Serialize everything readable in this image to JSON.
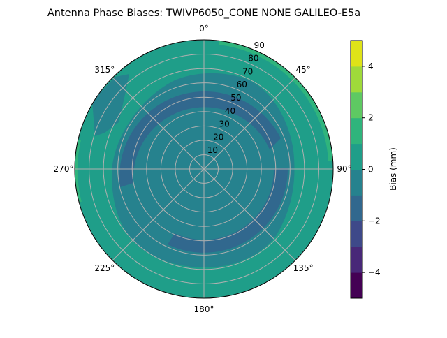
{
  "chart_data": {
    "type": "contour",
    "projection": "polar",
    "title": "Antenna Phase Biases: TWIVP6050_CONE  NONE GALILEO-E5a",
    "theta_direction": "clockwise",
    "theta_zero": "top",
    "theta_tick_labels": [
      "0°",
      "45°",
      "90°",
      "135°",
      "180°",
      "225°",
      "270°",
      "315°"
    ],
    "r_tick_labels": [
      "10",
      "20",
      "30",
      "40",
      "50",
      "60",
      "70",
      "80",
      "90"
    ],
    "rlim": [
      0,
      90
    ],
    "grid": true,
    "levels": [
      -5,
      -4,
      -3,
      -2,
      -1,
      0,
      1,
      2,
      3,
      4,
      5
    ],
    "level_colors": [
      "#440154",
      "#482878",
      "#3e4989",
      "#31688e",
      "#26828e",
      "#1f9e89",
      "#2fb47c",
      "#5ec962",
      "#9fda3a",
      "#dfe318"
    ],
    "colorbar": {
      "label": "Bias (mm)",
      "tick_labels": [
        "−4",
        "−2",
        "0",
        "2",
        "4"
      ],
      "ticks": [
        -4,
        -2,
        0,
        2,
        4
      ],
      "range": [
        -5,
        5
      ]
    },
    "regions": [
      {
        "level_range": [
          0,
          1
        ],
        "description_area": "outer zone elevation ~70-90 and background"
      },
      {
        "level_range": [
          1,
          2
        ],
        "description_area": "thin rim near 90 at 0°-90° and 250°-290°"
      },
      {
        "level_range": [
          -1,
          0
        ],
        "description_area": "central zone r < ~70"
      },
      {
        "level_range": [
          -2,
          -1
        ],
        "description_area": "arc r ~55-65 from ~260° through 0° to ~70°; arc r ~55-65 from ~90° to ~205°"
      }
    ]
  }
}
